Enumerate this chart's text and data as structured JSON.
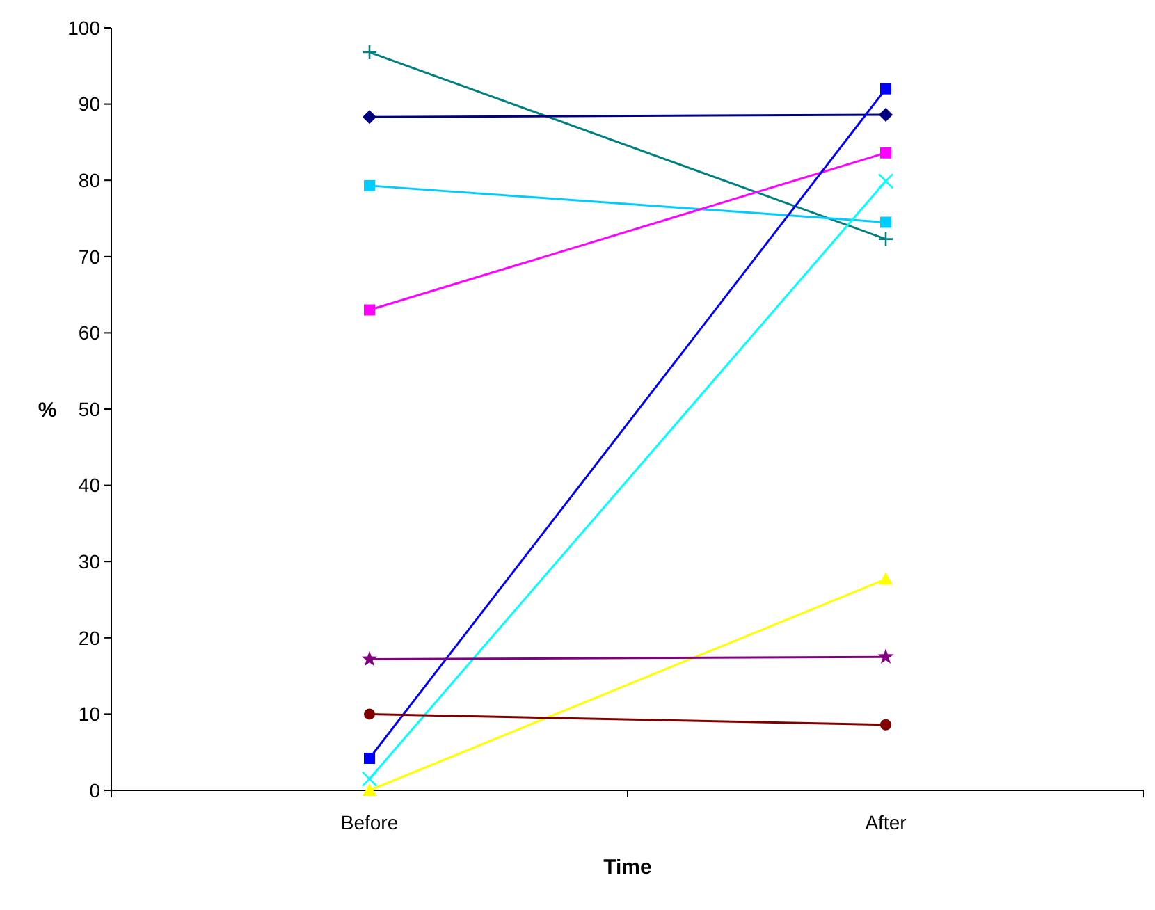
{
  "chart_data": {
    "type": "line",
    "xlabel": "Time",
    "ylabel": "%",
    "categories": [
      "Before",
      "After"
    ],
    "ylim": [
      0,
      100
    ],
    "yticks": [
      0,
      10,
      20,
      30,
      40,
      50,
      60,
      70,
      80,
      90,
      100
    ],
    "grid": false,
    "series": [
      {
        "color": "#008080",
        "marker": "cross",
        "values": [
          96.8,
          72.3
        ]
      },
      {
        "color": "#000080",
        "marker": "diamond",
        "values": [
          88.3,
          88.6
        ]
      },
      {
        "color": "#00ccff",
        "marker": "square",
        "values": [
          79.3,
          74.5
        ]
      },
      {
        "color": "#ff00ff",
        "marker": "square",
        "values": [
          63,
          83.6
        ]
      },
      {
        "color": "#0000ff",
        "marker": "square",
        "values": [
          4.2,
          92
        ]
      },
      {
        "color": "#00ffff",
        "marker": "x",
        "values": [
          1.5,
          79.9
        ]
      },
      {
        "color": "#ffff00",
        "marker": "triangle",
        "values": [
          0,
          27.7
        ]
      },
      {
        "color": "#800080",
        "marker": "star",
        "values": [
          17.2,
          17.5
        ]
      },
      {
        "color": "#800000",
        "marker": "circle",
        "values": [
          10,
          8.6
        ]
      }
    ]
  }
}
